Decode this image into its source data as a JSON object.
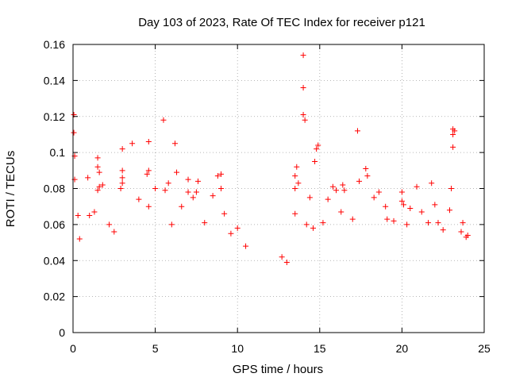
{
  "chart_data": {
    "type": "scatter",
    "title": "Day 103 of 2023, Rate Of TEC Index for receiver p121",
    "xlabel": "GPS time / hours",
    "ylabel": "ROTI / TECUs",
    "xlim": [
      0,
      25
    ],
    "ylim": [
      0,
      0.16
    ],
    "x_ticks": [
      "0",
      "5",
      "10",
      "15",
      "20",
      "25"
    ],
    "y_ticks": [
      "0",
      "0.02",
      "0.04",
      "0.06",
      "0.08",
      "0.1",
      "0.12",
      "0.14",
      "0.16"
    ],
    "grid": true,
    "marker": "plus",
    "marker_color": "#ff0000",
    "data_gap": [
      10.6,
      12.7
    ],
    "series": [
      {
        "values": [
          [
            0.05,
            0.121
          ],
          [
            0.05,
            0.111
          ],
          [
            0.1,
            0.098
          ],
          [
            0.1,
            0.085
          ],
          [
            0.3,
            0.065
          ],
          [
            0.4,
            0.052
          ],
          [
            0.9,
            0.086
          ],
          [
            1.0,
            0.065
          ],
          [
            1.3,
            0.067
          ],
          [
            1.5,
            0.097
          ],
          [
            1.5,
            0.092
          ],
          [
            1.6,
            0.089
          ],
          [
            1.5,
            0.079
          ],
          [
            1.6,
            0.081
          ],
          [
            1.8,
            0.082
          ],
          [
            2.2,
            0.06
          ],
          [
            2.5,
            0.056
          ],
          [
            2.9,
            0.08
          ],
          [
            3.0,
            0.102
          ],
          [
            3.0,
            0.083
          ],
          [
            3.0,
            0.086
          ],
          [
            3.0,
            0.09
          ],
          [
            3.6,
            0.105
          ],
          [
            4.0,
            0.074
          ],
          [
            4.5,
            0.088
          ],
          [
            4.6,
            0.09
          ],
          [
            4.6,
            0.106
          ],
          [
            4.6,
            0.07
          ],
          [
            5.0,
            0.08
          ],
          [
            5.5,
            0.118
          ],
          [
            5.6,
            0.079
          ],
          [
            5.8,
            0.083
          ],
          [
            6.0,
            0.06
          ],
          [
            6.2,
            0.105
          ],
          [
            6.3,
            0.089
          ],
          [
            6.6,
            0.07
          ],
          [
            7.0,
            0.085
          ],
          [
            7.0,
            0.078
          ],
          [
            7.3,
            0.075
          ],
          [
            7.5,
            0.078
          ],
          [
            7.6,
            0.084
          ],
          [
            8.0,
            0.061
          ],
          [
            8.5,
            0.076
          ],
          [
            8.8,
            0.087
          ],
          [
            9.0,
            0.088
          ],
          [
            9.0,
            0.08
          ],
          [
            9.2,
            0.066
          ],
          [
            9.6,
            0.055
          ],
          [
            10.0,
            0.058
          ],
          [
            10.5,
            0.048
          ],
          [
            12.7,
            0.042
          ],
          [
            13.0,
            0.039
          ],
          [
            13.5,
            0.066
          ],
          [
            13.5,
            0.08
          ],
          [
            13.5,
            0.087
          ],
          [
            13.6,
            0.092
          ],
          [
            13.7,
            0.083
          ],
          [
            14.0,
            0.154
          ],
          [
            14.0,
            0.136
          ],
          [
            14.0,
            0.121
          ],
          [
            14.1,
            0.118
          ],
          [
            14.2,
            0.06
          ],
          [
            14.4,
            0.075
          ],
          [
            14.6,
            0.058
          ],
          [
            14.7,
            0.095
          ],
          [
            14.8,
            0.102
          ],
          [
            14.9,
            0.104
          ],
          [
            15.2,
            0.061
          ],
          [
            15.5,
            0.074
          ],
          [
            15.8,
            0.081
          ],
          [
            16.0,
            0.079
          ],
          [
            16.3,
            0.067
          ],
          [
            16.4,
            0.082
          ],
          [
            16.5,
            0.079
          ],
          [
            17.0,
            0.063
          ],
          [
            17.3,
            0.112
          ],
          [
            17.4,
            0.084
          ],
          [
            17.8,
            0.091
          ],
          [
            17.9,
            0.087
          ],
          [
            18.3,
            0.075
          ],
          [
            18.6,
            0.078
          ],
          [
            19.0,
            0.07
          ],
          [
            19.1,
            0.063
          ],
          [
            19.5,
            0.062
          ],
          [
            20.0,
            0.073
          ],
          [
            20.0,
            0.078
          ],
          [
            20.1,
            0.071
          ],
          [
            20.3,
            0.06
          ],
          [
            20.5,
            0.069
          ],
          [
            20.9,
            0.081
          ],
          [
            21.2,
            0.067
          ],
          [
            21.6,
            0.061
          ],
          [
            21.8,
            0.083
          ],
          [
            22.0,
            0.071
          ],
          [
            22.2,
            0.061
          ],
          [
            22.5,
            0.057
          ],
          [
            22.9,
            0.068
          ],
          [
            23.0,
            0.08
          ],
          [
            23.1,
            0.113
          ],
          [
            23.1,
            0.11
          ],
          [
            23.1,
            0.103
          ],
          [
            23.2,
            0.112
          ],
          [
            23.6,
            0.056
          ],
          [
            23.7,
            0.061
          ],
          [
            23.9,
            0.053
          ],
          [
            24.0,
            0.054
          ]
        ]
      }
    ]
  }
}
